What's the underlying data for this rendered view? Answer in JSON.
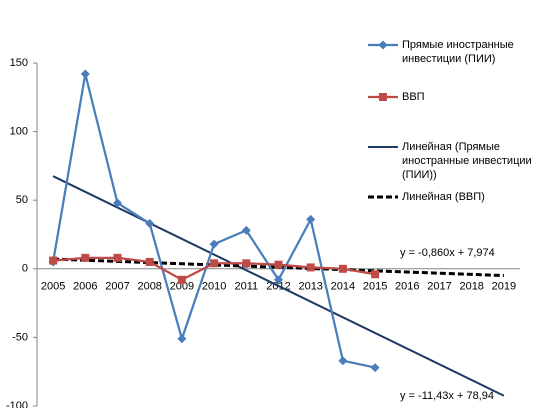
{
  "chart_data": {
    "type": "line",
    "categories": [
      "2005",
      "2006",
      "2007",
      "2008",
      "2009",
      "2010",
      "2011",
      "2012",
      "2013",
      "2014",
      "2015",
      "2016",
      "2017",
      "2018",
      "2019"
    ],
    "series": [
      {
        "name": "Прямые иностранные инвестиции (ПИИ)",
        "color": "#4a7ebb",
        "marker": "diamond",
        "values": [
          5,
          142,
          48,
          33,
          -51,
          18,
          28,
          -8,
          36,
          -67,
          -72,
          null,
          null,
          null,
          null
        ]
      },
      {
        "name": "ВВП",
        "color": "#be4b48",
        "marker": "square",
        "values": [
          6,
          8,
          8,
          5,
          -8,
          4,
          4,
          3,
          1,
          0,
          -4,
          null,
          null,
          null,
          null
        ]
      }
    ],
    "trendlines": [
      {
        "name": "Линейная (Прямые иностранные инвестиции (ПИИ))",
        "color": "#1f3864",
        "dashed": false,
        "slope": -11.43,
        "intercept": 78.94,
        "label": "y = -11,43x + 78,94"
      },
      {
        "name": "Линейная (ВВП)",
        "color": "#000000",
        "dashed": true,
        "slope": -0.86,
        "intercept": 7.974,
        "label": "y = -0,860x + 7,974"
      }
    ],
    "ylim": [
      -100,
      150
    ],
    "yticks": [
      -100,
      -50,
      0,
      50,
      100,
      150
    ],
    "grid": false
  }
}
